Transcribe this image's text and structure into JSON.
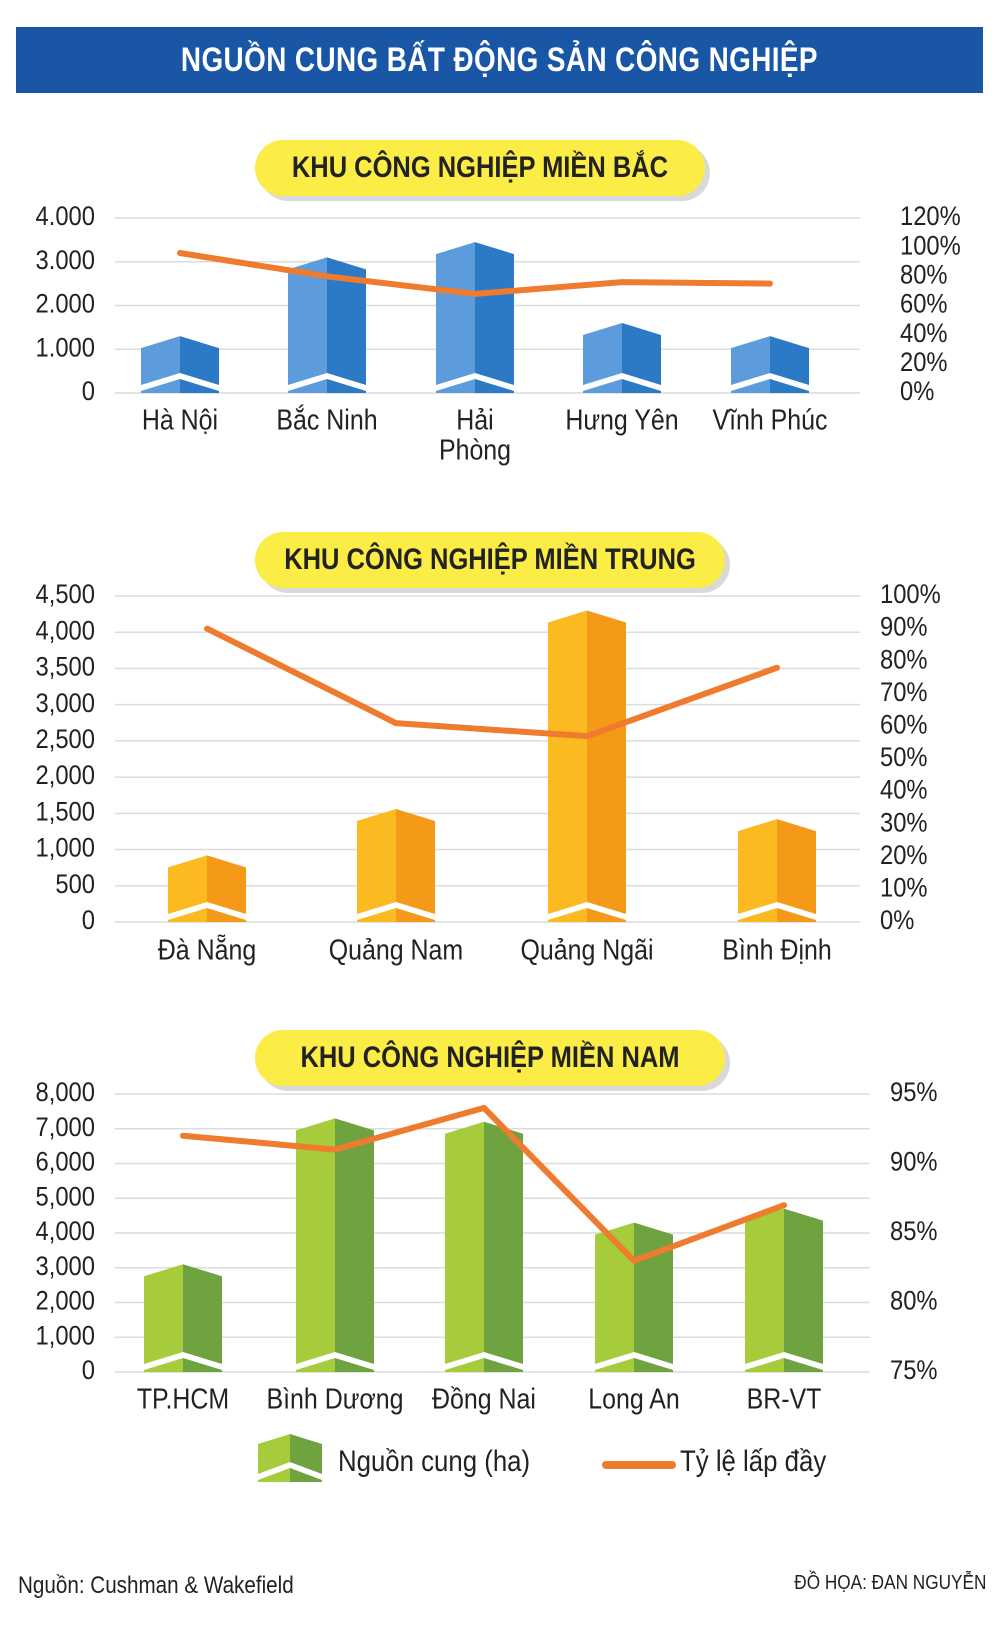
{
  "title": "NGUỒN CUNG BẤT ĐỘNG SẢN CÔNG NGHIỆP",
  "colors": {
    "header": "#1a56a6",
    "pill": "#fbed45",
    "line": "#ef7b2e",
    "north_light": "#5c9bdc",
    "north_dark": "#2c79c6",
    "central_light": "#fcba21",
    "central_dark": "#f59a18",
    "south_light": "#a6cc3c",
    "south_dark": "#6ea340"
  },
  "chart_data": [
    {
      "type": "bar",
      "title": "KHU CÔNG NGHIỆP MIỀN BẮC",
      "categories": [
        "Hà Nội",
        "Bắc Ninh",
        "Hải Phòng",
        "Hưng Yên",
        "Vĩnh Phúc"
      ],
      "series": [
        {
          "name": "Nguồn cung (ha)",
          "type": "bar",
          "axis": "left",
          "values": [
            1300,
            3100,
            3450,
            1600,
            1300
          ]
        },
        {
          "name": "Tỷ lệ lấp đầy",
          "type": "line",
          "axis": "right",
          "values": [
            96,
            80,
            68,
            76,
            75
          ]
        }
      ],
      "yticks": [
        "0",
        "1.000",
        "2.000",
        "3.000",
        "4.000"
      ],
      "ylim": [
        0,
        4000
      ],
      "y2ticks": [
        "0%",
        "20%",
        "40%",
        "60%",
        "80%",
        "100%",
        "120%"
      ],
      "y2lim": [
        0,
        120
      ],
      "grid": true
    },
    {
      "type": "bar",
      "title": "KHU CÔNG NGHIỆP MIỀN TRUNG",
      "categories": [
        "Đà Nẵng",
        "Quảng Nam",
        "Quảng Ngãi",
        "Bình Định"
      ],
      "series": [
        {
          "name": "Nguồn cung (ha)",
          "type": "bar",
          "axis": "left",
          "values": [
            920,
            1560,
            4300,
            1420
          ]
        },
        {
          "name": "Tỷ lệ lấp đầy",
          "type": "line",
          "axis": "right",
          "values": [
            90,
            61,
            57,
            78
          ]
        }
      ],
      "yticks": [
        "0",
        "500",
        "1,000",
        "1,500",
        "2,000",
        "2,500",
        "3,000",
        "3,500",
        "4,000",
        "4,500"
      ],
      "ylim": [
        0,
        4500
      ],
      "y2ticks": [
        "0%",
        "10%",
        "20%",
        "30%",
        "40%",
        "50%",
        "60%",
        "70%",
        "80%",
        "90%",
        "100%"
      ],
      "y2lim": [
        0,
        100
      ],
      "grid": true
    },
    {
      "type": "bar",
      "title": "KHU CÔNG NGHIỆP MIỀN NAM",
      "categories": [
        "TP.HCM",
        "Bình Dương",
        "Đồng Nai",
        "Long An",
        "BR-VT"
      ],
      "series": [
        {
          "name": "Nguồn cung (ha)",
          "type": "bar",
          "axis": "left",
          "values": [
            3100,
            7300,
            7200,
            4300,
            4700
          ]
        },
        {
          "name": "Tỷ lệ lấp đầy",
          "type": "line",
          "axis": "right",
          "values": [
            92,
            91,
            94,
            83,
            87
          ]
        }
      ],
      "yticks": [
        "0",
        "1,000",
        "2,000",
        "3,000",
        "4,000",
        "5,000",
        "6,000",
        "7,000",
        "8,000"
      ],
      "ylim": [
        0,
        8000
      ],
      "y2ticks": [
        "75%",
        "80%",
        "85%",
        "90%",
        "95%"
      ],
      "y2lim": [
        75,
        95
      ],
      "grid": true
    }
  ],
  "legend": {
    "bar_label": "Nguồn cung (ha)",
    "line_label": "Tỷ lệ lấp đầy"
  },
  "source": "Nguồn:  Cushman & Wakefield",
  "credit": "ĐỒ HỌA: ĐAN NGUYỄN"
}
